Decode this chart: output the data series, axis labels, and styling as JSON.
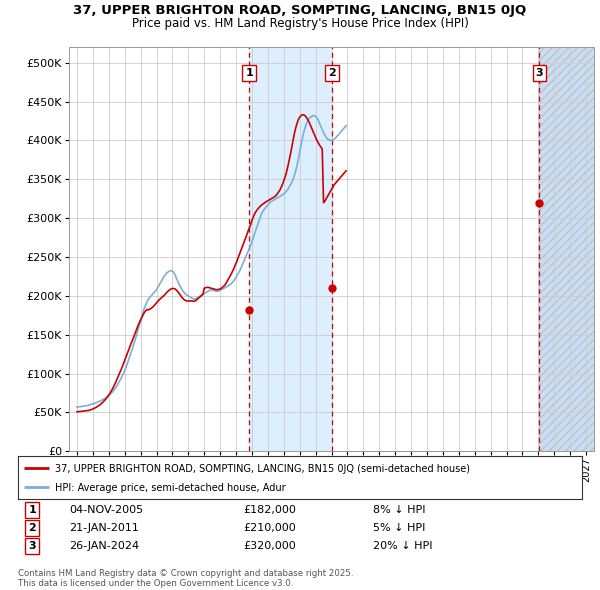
{
  "title1": "37, UPPER BRIGHTON ROAD, SOMPTING, LANCING, BN15 0JQ",
  "title2": "Price paid vs. HM Land Registry's House Price Index (HPI)",
  "ylabel_ticks": [
    "£0",
    "£50K",
    "£100K",
    "£150K",
    "£200K",
    "£250K",
    "£300K",
    "£350K",
    "£400K",
    "£450K",
    "£500K"
  ],
  "ytick_values": [
    0,
    50000,
    100000,
    150000,
    200000,
    250000,
    300000,
    350000,
    400000,
    450000,
    500000
  ],
  "ylim": [
    0,
    520000
  ],
  "xlim_start": 1994.5,
  "xlim_end": 2027.5,
  "xtick_years": [
    1995,
    1996,
    1997,
    1998,
    1999,
    2000,
    2001,
    2002,
    2003,
    2004,
    2005,
    2006,
    2007,
    2008,
    2009,
    2010,
    2011,
    2012,
    2013,
    2014,
    2015,
    2016,
    2017,
    2018,
    2019,
    2020,
    2021,
    2022,
    2023,
    2024,
    2025,
    2026,
    2027
  ],
  "hpi_color": "#7ab0d4",
  "price_color": "#cc0000",
  "vline_color": "#cc0000",
  "span1_color": "#ddeeff",
  "span2_color": "#ddeeff",
  "hatch_color": "#ccddf0",
  "legend_label_price": "37, UPPER BRIGHTON ROAD, SOMPTING, LANCING, BN15 0JQ (semi-detached house)",
  "legend_label_hpi": "HPI: Average price, semi-detached house, Adur",
  "transaction1_date": "04-NOV-2005",
  "transaction1_price": "£182,000",
  "transaction1_hpi": "8% ↓ HPI",
  "transaction1_x": 2005.84,
  "transaction1_y": 182000,
  "transaction2_date": "21-JAN-2011",
  "transaction2_price": "£210,000",
  "transaction2_hpi": "5% ↓ HPI",
  "transaction2_x": 2011.05,
  "transaction2_y": 210000,
  "transaction3_date": "26-JAN-2024",
  "transaction3_price": "£320,000",
  "transaction3_hpi": "20% ↓ HPI",
  "transaction3_x": 2024.07,
  "transaction3_y": 320000,
  "footer": "Contains HM Land Registry data © Crown copyright and database right 2025.\nThis data is licensed under the Open Government Licence v3.0.",
  "bg_color": "#ffffff",
  "grid_color": "#cccccc",
  "hpi_monthly": [
    57000,
    57200,
    57400,
    57600,
    57800,
    58000,
    58300,
    58600,
    59000,
    59500,
    60000,
    60500,
    61000,
    61500,
    62200,
    63000,
    63800,
    64500,
    65200,
    66000,
    67000,
    68000,
    69200,
    70500,
    72000,
    73500,
    75000,
    77000,
    79000,
    81500,
    84000,
    87000,
    90000,
    93000,
    96500,
    100000,
    104000,
    108000,
    113000,
    118000,
    123000,
    128000,
    133000,
    138500,
    144000,
    150000,
    156000,
    162000,
    168000,
    174000,
    180000,
    185000,
    189000,
    193000,
    196000,
    198000,
    200000,
    202000,
    204000,
    206000,
    208000,
    211000,
    214000,
    217000,
    220000,
    223000,
    226000,
    228000,
    230000,
    231000,
    232000,
    232500,
    232000,
    230000,
    227000,
    223000,
    219000,
    215000,
    212000,
    209000,
    206000,
    204000,
    202000,
    201000,
    200000,
    199000,
    198000,
    197000,
    196000,
    196000,
    197000,
    198000,
    199000,
    200000,
    201000,
    202000,
    203000,
    204000,
    205000,
    206000,
    207000,
    208000,
    207500,
    207000,
    206500,
    206000,
    206000,
    206500,
    207000,
    208000,
    209000,
    210000,
    211000,
    212000,
    213000,
    214000,
    215000,
    217000,
    219000,
    221000,
    224000,
    227000,
    230000,
    233000,
    237000,
    241000,
    245000,
    249000,
    253000,
    257000,
    261000,
    265000,
    270000,
    275000,
    280000,
    285000,
    290000,
    295000,
    300000,
    305000,
    308000,
    311000,
    313000,
    315000,
    317000,
    319000,
    321000,
    322000,
    323000,
    324000,
    325000,
    326000,
    327000,
    328000,
    329000,
    330000,
    331000,
    333000,
    335000,
    337000,
    340000,
    343000,
    346000,
    350000,
    355000,
    361000,
    368000,
    376000,
    385000,
    394000,
    402000,
    410000,
    416000,
    421000,
    425000,
    428000,
    430000,
    431000,
    432000,
    432000,
    431000,
    429000,
    426000,
    422000,
    418000,
    414000,
    410000,
    407000,
    404000,
    402000,
    401000,
    400000,
    400000,
    401000,
    402000,
    403000,
    405000,
    407000,
    409000,
    411000,
    413000,
    415000,
    417000,
    419000
  ],
  "price_monthly": [
    51000,
    51000,
    51200,
    51400,
    51600,
    51800,
    52000,
    52200,
    52400,
    52700,
    53200,
    53800,
    54500,
    55300,
    56200,
    57200,
    58300,
    59500,
    60800,
    62300,
    64000,
    65800,
    67800,
    70000,
    72500,
    75000,
    78000,
    81000,
    84500,
    88000,
    92000,
    96000,
    100000,
    104000,
    108000,
    112500,
    117000,
    121500,
    126000,
    130500,
    135000,
    139500,
    143500,
    148000,
    152500,
    157000,
    161500,
    165500,
    169000,
    172500,
    176000,
    179000,
    181000,
    182500,
    182000,
    183000,
    184000,
    185500,
    187000,
    189000,
    191000,
    193000,
    195000,
    196500,
    198000,
    199500,
    201000,
    203000,
    205000,
    206500,
    208000,
    209000,
    209500,
    209500,
    209000,
    207500,
    205500,
    203500,
    201000,
    198500,
    196500,
    195000,
    194000,
    193500,
    193500,
    193500,
    193500,
    193500,
    193000,
    193500,
    194500,
    196000,
    197500,
    199000,
    200500,
    202000,
    210000,
    210500,
    211000,
    211000,
    210500,
    210000,
    209500,
    209000,
    208500,
    208000,
    208000,
    208500,
    209000,
    210000,
    211500,
    213000,
    215000,
    218000,
    221000,
    224000,
    227000,
    230500,
    234000,
    238000,
    242000,
    246500,
    251000,
    255500,
    260000,
    264500,
    269000,
    273500,
    278000,
    283000,
    287500,
    292000,
    297000,
    301500,
    305500,
    308500,
    311000,
    313000,
    315000,
    316500,
    318000,
    319000,
    320500,
    321500,
    322500,
    323500,
    324500,
    325500,
    326500,
    327500,
    329000,
    331000,
    333500,
    336000,
    339500,
    343500,
    348000,
    353000,
    359000,
    366000,
    374000,
    382000,
    391000,
    400000,
    409000,
    416000,
    422000,
    427000,
    430000,
    432000,
    433000,
    433000,
    432000,
    430000,
    427000,
    424000,
    420000,
    416000,
    412000,
    408000,
    404000,
    400000,
    397000,
    394000,
    391500,
    389000,
    320000,
    322000,
    325000,
    328000,
    331000,
    334000,
    337000,
    340000,
    343000,
    345000,
    347000,
    349000,
    351000,
    353000,
    355000,
    357000,
    359000,
    361000
  ]
}
